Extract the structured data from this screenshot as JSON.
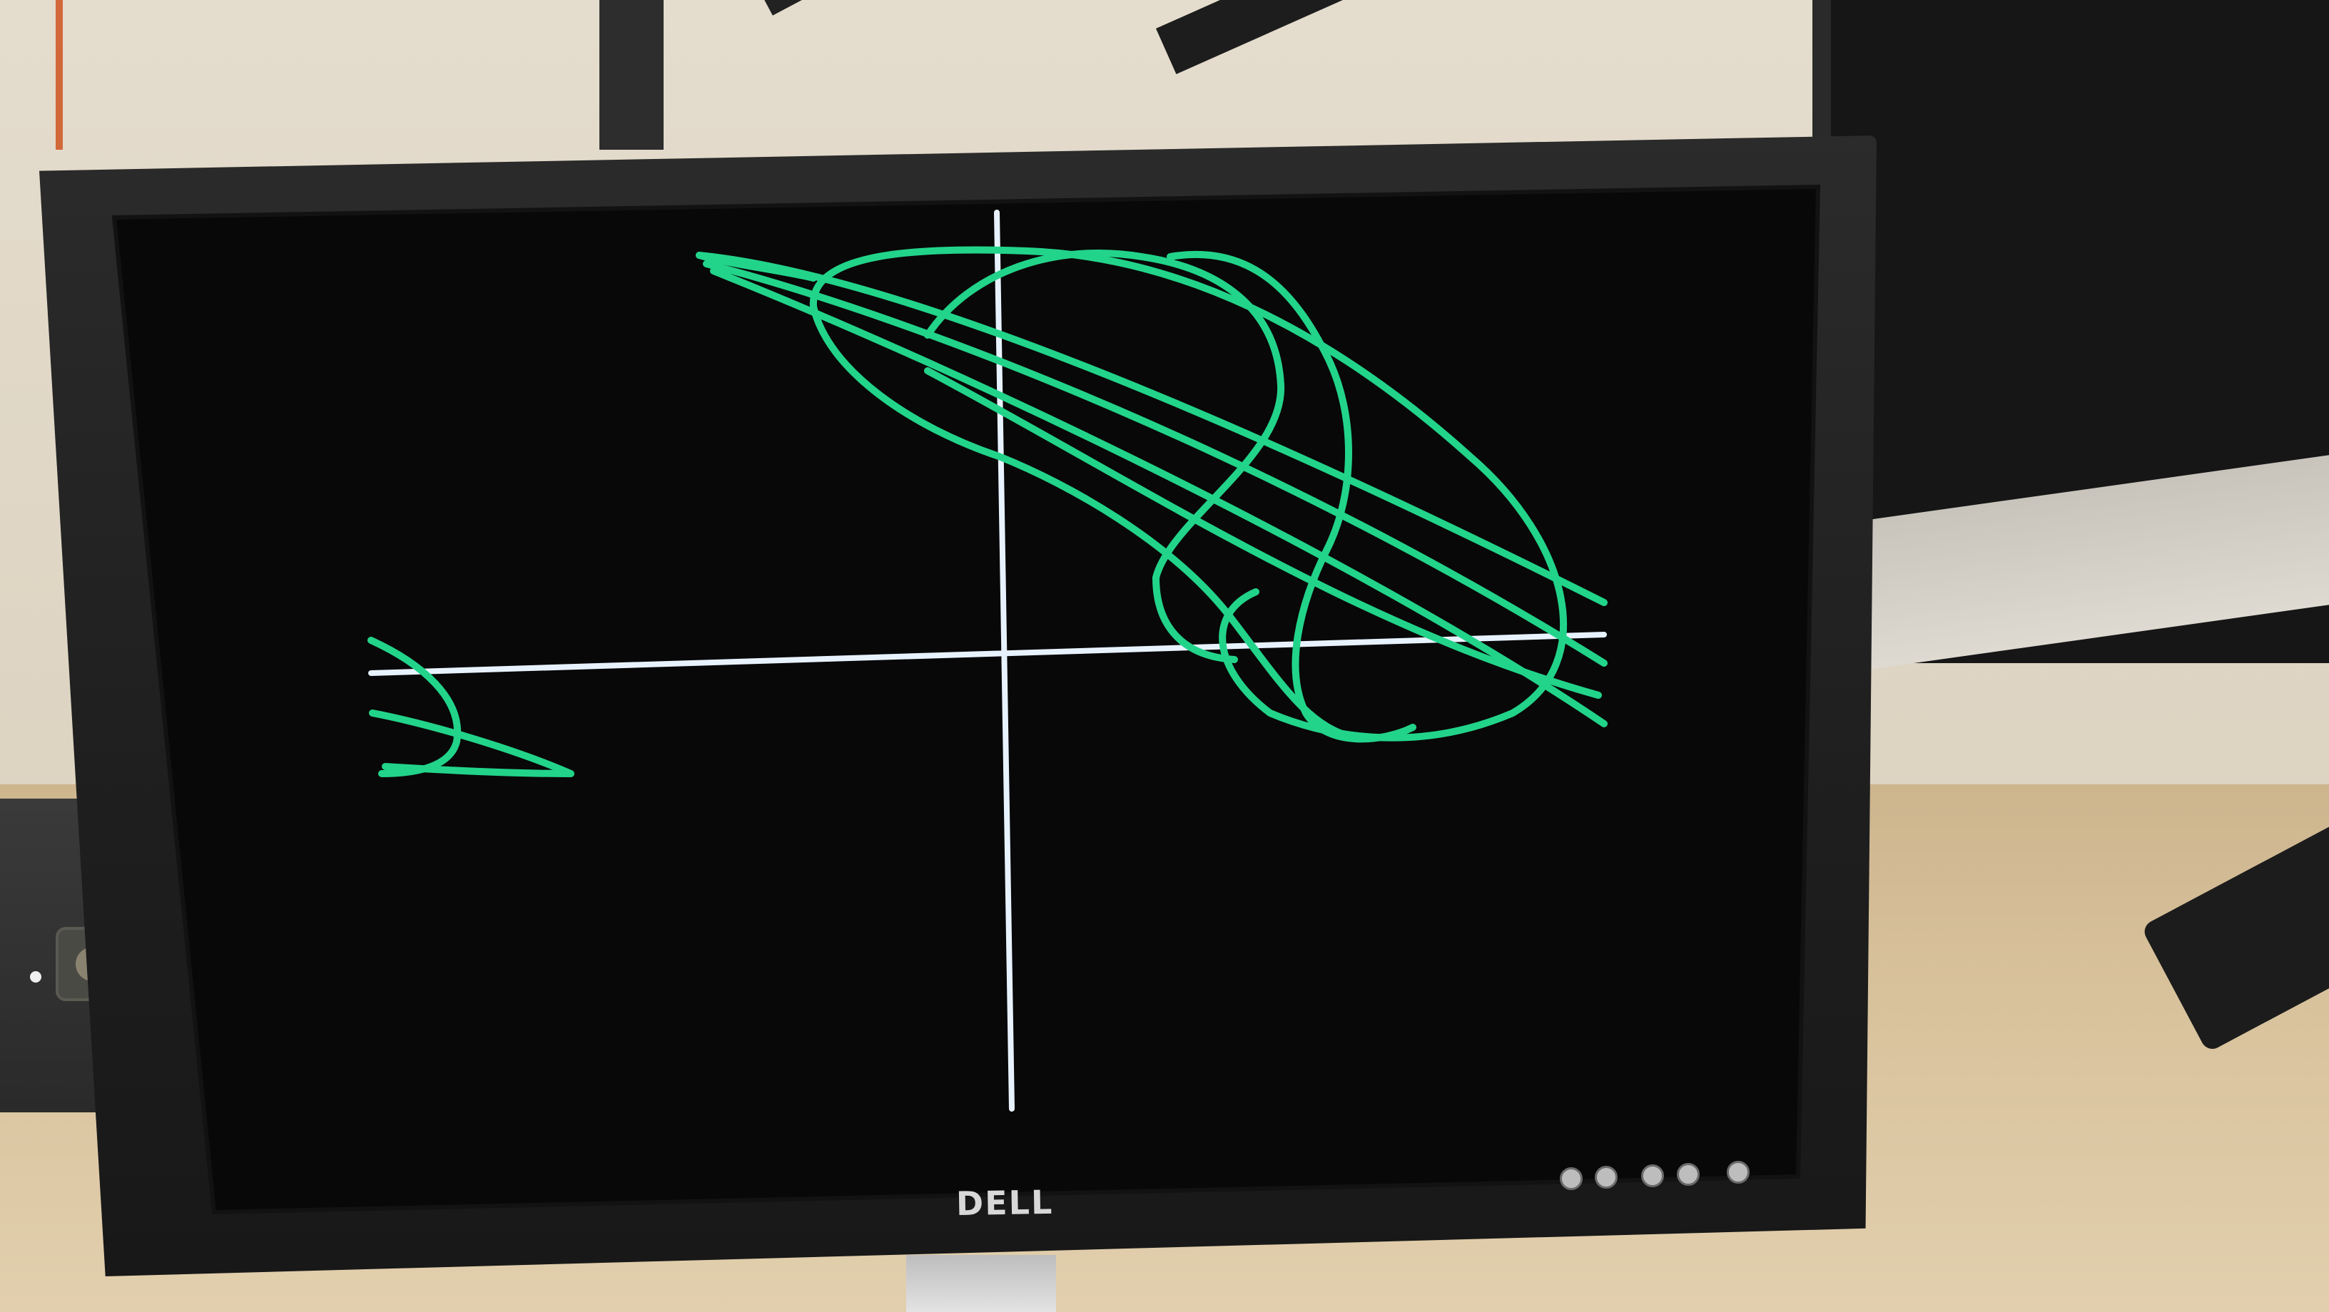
{
  "scene": {
    "monitor_brand": "DELL",
    "display_colors": {
      "screen_background": "#080808",
      "trace_color": "#22d48a",
      "axis_color": "#e8f2ff"
    }
  },
  "icons": {
    "power": "power-button-icon",
    "menu": "menu-button-icon"
  }
}
